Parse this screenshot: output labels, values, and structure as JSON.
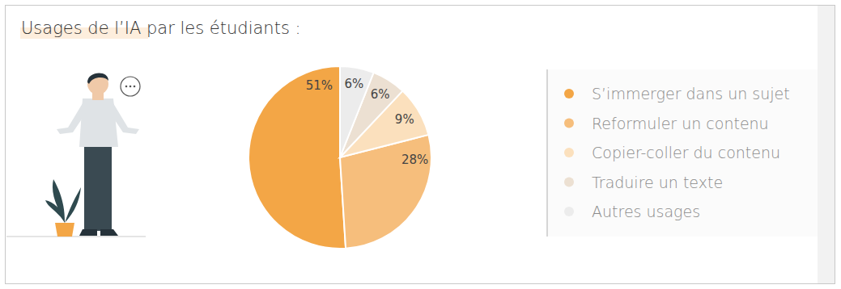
{
  "chart_data": {
    "type": "pie",
    "title": "Usages de l’IA par les étudiants :",
    "categories": [
      "S’immerger dans un sujet",
      "Reformuler un contenu",
      "Copier-coller du contenu",
      "Traduire un texte",
      "Autres usages"
    ],
    "values": [
      51,
      28,
      9,
      6,
      6
    ],
    "value_labels": [
      "51%",
      "28%",
      "9%",
      "6%",
      "6%"
    ],
    "colors": [
      "#f3a646",
      "#f6be7c",
      "#fbe0bd",
      "#ece0d2",
      "#ececec"
    ],
    "data_labels": true,
    "legend": "right"
  }
}
